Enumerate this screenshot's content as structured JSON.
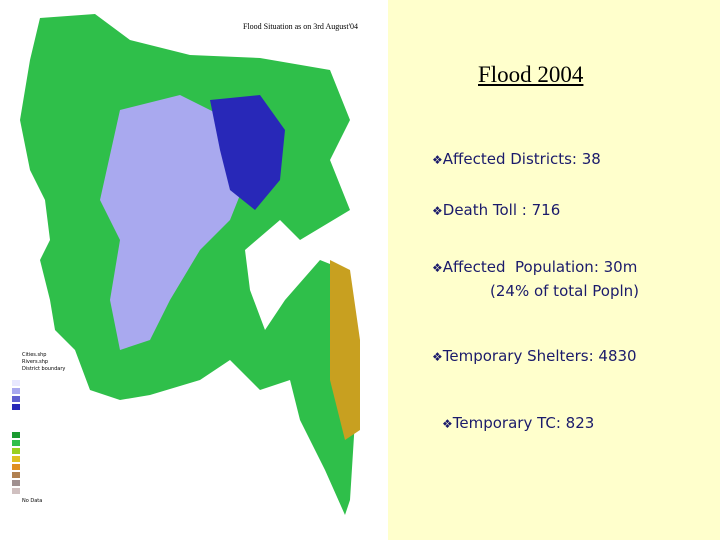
{
  "map": {
    "title": "Flood Situation as on 3rd August'04",
    "legend": [
      "Cities.shp",
      "Rivers.shp",
      "District boundary",
      "No Data"
    ]
  },
  "slide": {
    "title": "Flood 2004",
    "bullets": [
      {
        "lines": [
          "Affected Districts: 38"
        ]
      },
      {
        "lines": [
          "Death Toll : 716"
        ]
      },
      {
        "lines": [
          "Affected  Population: 30m",
          "(24% of total Popln)"
        ]
      },
      {
        "lines": [
          "Temporary Shelters: 4830"
        ]
      },
      {
        "lines": [
          "Temporary TC: 823"
        ]
      }
    ]
  }
}
